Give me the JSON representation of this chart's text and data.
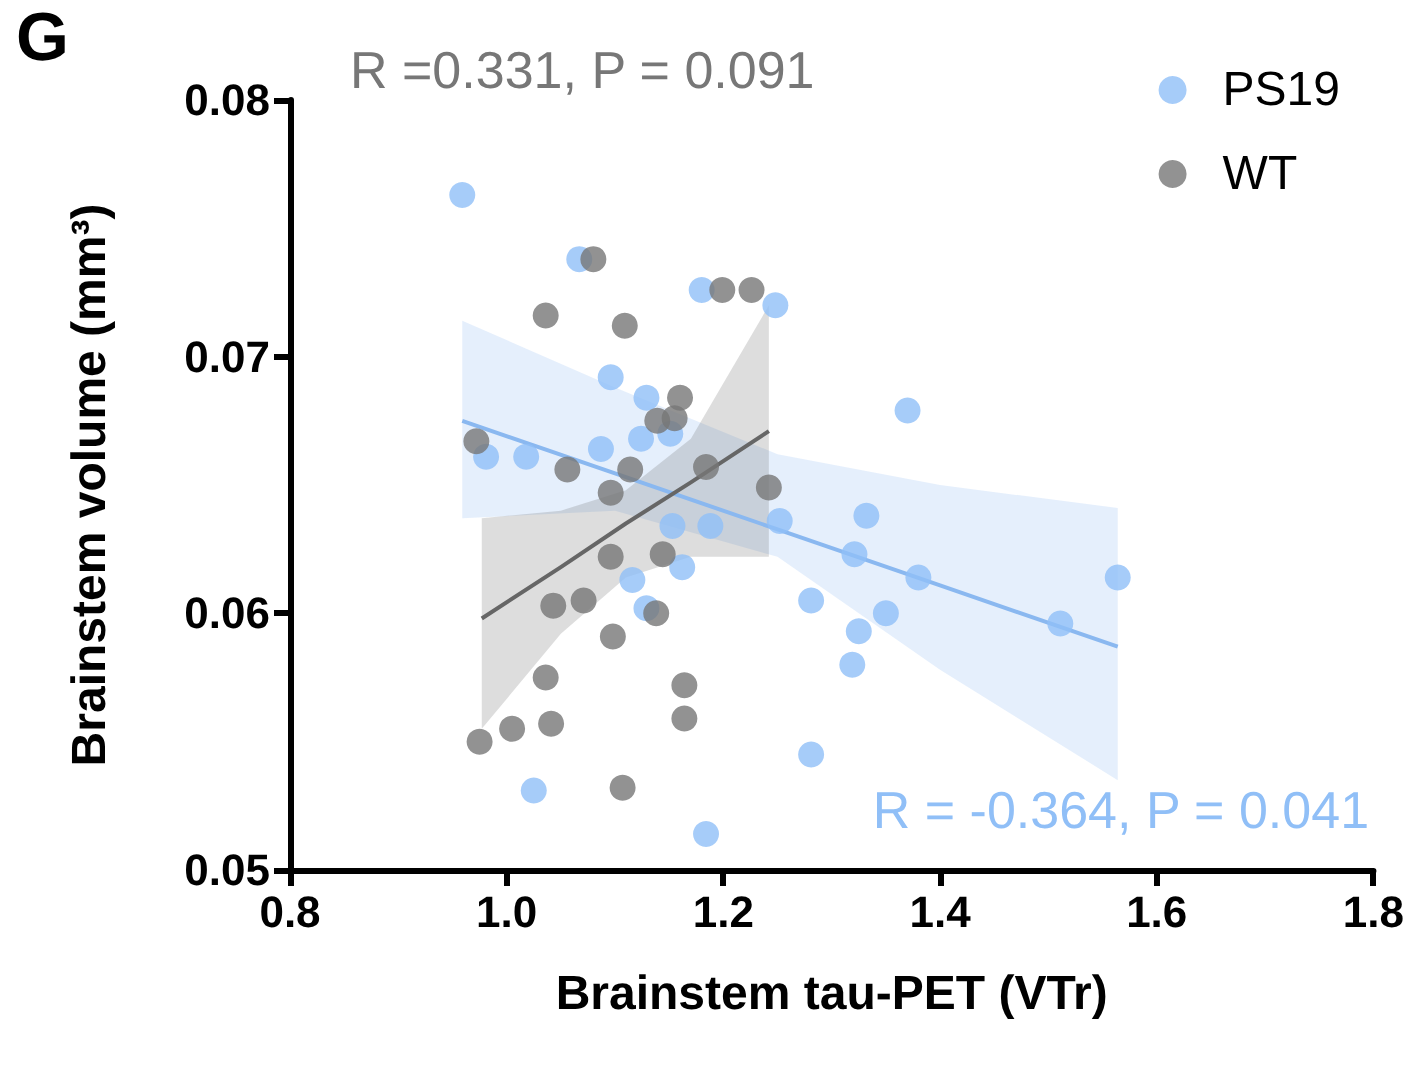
{
  "chart_data": {
    "type": "scatter",
    "xlabel": "Brainstem tau-PET (VTr)",
    "ylabel": "Brainstem volume (mm³)",
    "annotations": [
      "G",
      "R =0.331, P = 0.091",
      "R = -0.364, P = 0.041"
    ],
    "xlim": [
      0.8,
      1.8
    ],
    "xticks": [
      0.8,
      {
        "value": 1,
        "label": "1.0"
      },
      1.2,
      1.4,
      1.6,
      1.8
    ],
    "ylim": [
      0.05,
      0.08
    ],
    "yticks": [
      0.05,
      0.06,
      0.07,
      0.08
    ],
    "grid": false,
    "legend": "top right",
    "marker": "circle",
    "series": [
      {
        "name": "PS19",
        "color": "#90bff7",
        "x": [
          0.959,
          0.981,
          1.018,
          1.025,
          1.067,
          1.087,
          1.096,
          1.116,
          1.124,
          1.129,
          1.129,
          1.151,
          1.153,
          1.162,
          1.18,
          1.184,
          1.188,
          1.248,
          1.252,
          1.281,
          1.281,
          1.319,
          1.321,
          1.325,
          1.332,
          1.35,
          1.37,
          1.38,
          1.511,
          1.564
        ],
        "values": [
          0.0763,
          0.0661,
          0.0661,
          0.0531,
          0.0738,
          0.0664,
          0.0692,
          0.0613,
          0.0668,
          0.0684,
          0.0602,
          0.067,
          0.0634,
          0.0618,
          0.0726,
          0.0514,
          0.0634,
          0.072,
          0.0636,
          0.0605,
          0.0545,
          0.058,
          0.0623,
          0.0593,
          0.0638,
          0.06,
          0.0679,
          0.0614,
          0.0596,
          0.0614
        ]
      },
      {
        "name": "WT",
        "color": "#777777",
        "x": [
          0.972,
          0.975,
          1.005,
          1.036,
          1.036,
          1.041,
          1.043,
          1.056,
          1.071,
          1.08,
          1.096,
          1.096,
          1.098,
          1.107,
          1.109,
          1.114,
          1.138,
          1.139,
          1.144,
          1.155,
          1.16,
          1.164,
          1.164,
          1.184,
          1.199,
          1.226,
          1.242
        ],
        "values": [
          0.0667,
          0.055,
          0.0555,
          0.0716,
          0.0575,
          0.0557,
          0.0603,
          0.0656,
          0.0605,
          0.0738,
          0.0647,
          0.0622,
          0.0591,
          0.0532,
          0.0712,
          0.0656,
          0.06,
          0.0675,
          0.0623,
          0.0676,
          0.0684,
          0.0572,
          0.0559,
          0.0657,
          0.0726,
          0.0726,
          0.0649
        ]
      },
      {
        "type": "line",
        "marker": "none",
        "color": "#8ab8f0",
        "x": [
          0.959,
          1.1,
          1.25,
          1.4,
          1.564
        ],
        "values": [
          0.0675,
          0.06545,
          0.06327,
          0.06109,
          0.0587
        ],
        "lower": [
          0.0637,
          0.064,
          0.0622,
          0.0578,
          0.0535
        ],
        "upper": [
          0.0714,
          0.0688,
          0.0662,
          0.065,
          0.0641
        ]
      },
      {
        "type": "line",
        "marker": "none",
        "color": "#666666",
        "x": [
          0.977,
          1.05,
          1.11,
          1.17,
          1.242
        ],
        "values": [
          0.0598,
          0.0618,
          0.0635,
          0.0651,
          0.0671
        ],
        "lower": [
          0.0555,
          0.0592,
          0.0614,
          0.0622,
          0.0622
        ],
        "upper": [
          0.0637,
          0.064,
          0.0648,
          0.0668,
          0.072
        ]
      }
    ]
  }
}
